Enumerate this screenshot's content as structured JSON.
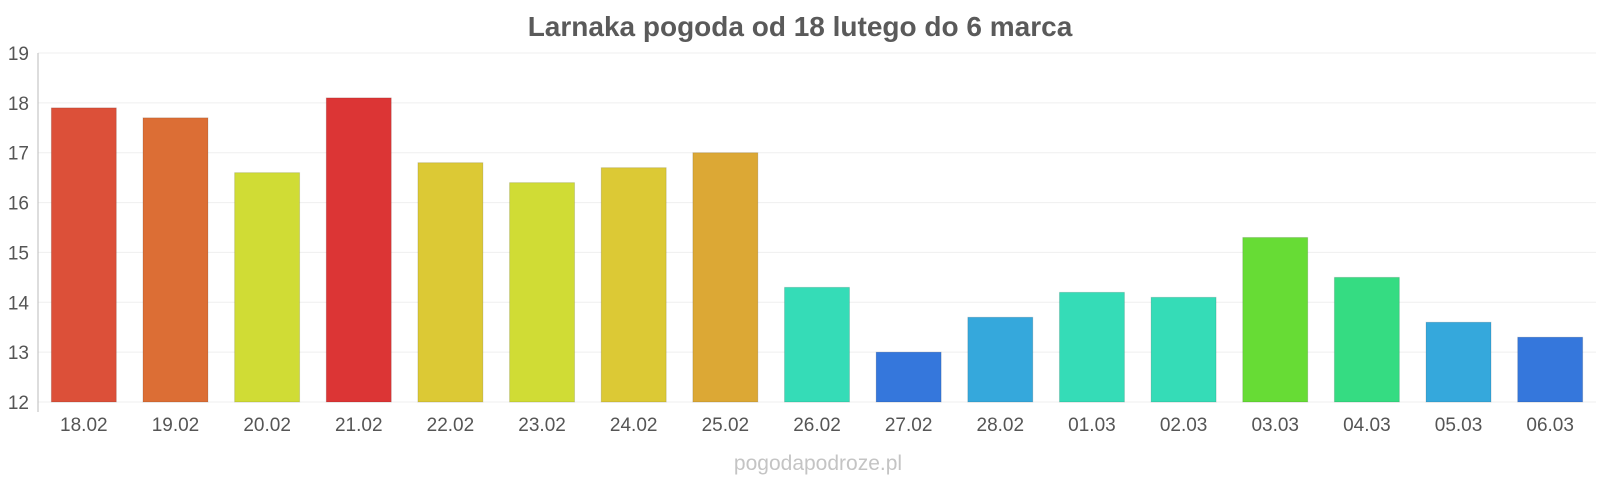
{
  "chart_data": {
    "type": "bar",
    "title": "Larnaka pogoda od 18 lutego do 6 marca",
    "xlabel": "",
    "ylabel": "",
    "ylim": [
      12,
      19
    ],
    "yticks": [
      12,
      13,
      14,
      15,
      16,
      17,
      18,
      19
    ],
    "grid": true,
    "legend": "none",
    "categories": [
      "18.02",
      "19.02",
      "20.02",
      "21.02",
      "22.02",
      "23.02",
      "24.02",
      "25.02",
      "26.02",
      "27.02",
      "28.02",
      "01.03",
      "02.03",
      "03.03",
      "04.03",
      "05.03",
      "06.03"
    ],
    "values": [
      17.9,
      17.7,
      16.6,
      18.1,
      16.8,
      16.4,
      16.7,
      17.0,
      14.3,
      13.0,
      13.7,
      14.2,
      14.1,
      15.3,
      14.5,
      13.6,
      13.3
    ],
    "colors": [
      "#dc5039",
      "#dc6e35",
      "#d0dc35",
      "#dc3535",
      "#dcc935",
      "#d0dc35",
      "#dcc935",
      "#dca835",
      "#35dcb7",
      "#3577dc",
      "#35a8dc",
      "#35dcb7",
      "#35dcb7",
      "#67dc35",
      "#35dc82",
      "#35a8dc",
      "#3577dc"
    ]
  },
  "credit": "pogodapodroze.pl"
}
